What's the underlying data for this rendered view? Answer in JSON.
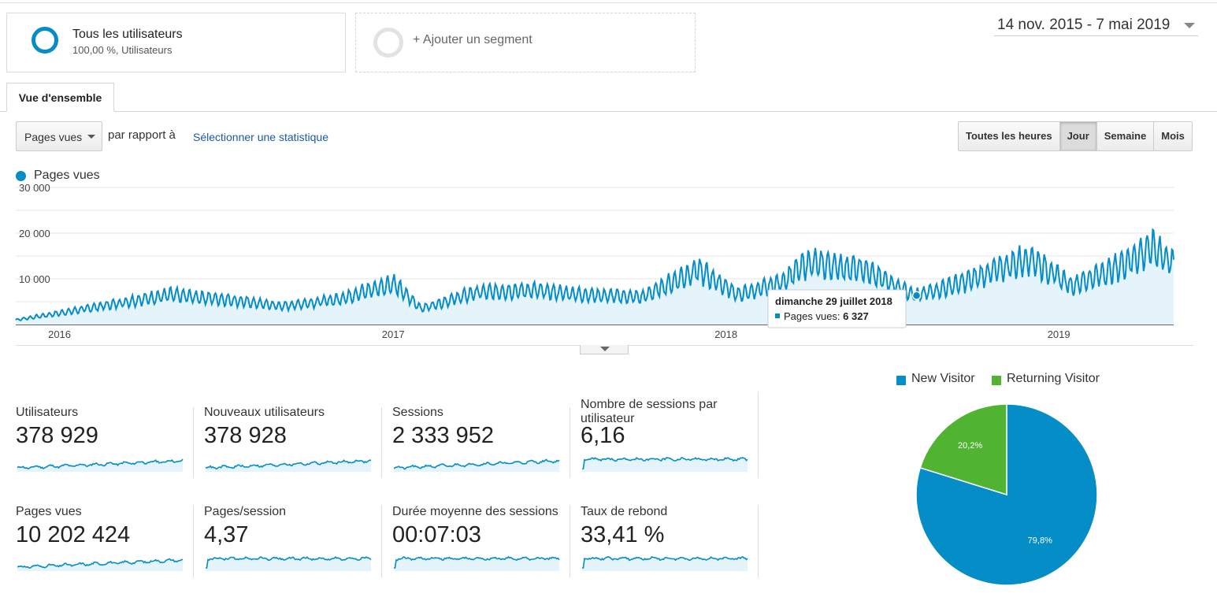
{
  "segments": {
    "primary": {
      "title": "Tous les utilisateurs",
      "subtitle": "100,00 %, Utilisateurs"
    },
    "add_label": "+ Ajouter un segment"
  },
  "date_range": "14 nov. 2015 - 7 mai 2019",
  "tabs": [
    {
      "label": "Vue d'ensemble"
    }
  ],
  "controls": {
    "metric_select": "Pages vues",
    "compare_label": "par rapport à",
    "select_stat_link": "Sélectionner une statistique",
    "granularity": [
      "Toutes les heures",
      "Jour",
      "Semaine",
      "Mois"
    ],
    "granularity_selected": "Jour"
  },
  "colors": {
    "accent": "#058dc7",
    "returning": "#50b432"
  },
  "chart_data": [
    {
      "type": "line",
      "legend": "Pages vues",
      "y_ticks": [
        "30 000",
        "20 000",
        "10 000"
      ],
      "x_ticks": [
        "2016",
        "2017",
        "2018",
        "2019"
      ],
      "ylim": [
        0,
        30000
      ],
      "xlim": [
        "2015-11-14",
        "2019-05-07"
      ],
      "series": [
        {
          "name": "Pages vues",
          "points": [
            [
              "2015-11-14",
              1000
            ],
            [
              "2016-01-01",
              2500
            ],
            [
              "2016-03-01",
              4500
            ],
            [
              "2016-05-01",
              6500
            ],
            [
              "2016-07-01",
              5500
            ],
            [
              "2016-09-01",
              4000
            ],
            [
              "2016-11-01",
              5500
            ],
            [
              "2017-01-01",
              9000
            ],
            [
              "2017-02-01",
              3500
            ],
            [
              "2017-04-01",
              7000
            ],
            [
              "2017-06-01",
              7500
            ],
            [
              "2017-08-01",
              6500
            ],
            [
              "2017-10-01",
              6000
            ],
            [
              "2017-12-01",
              12000
            ],
            [
              "2018-01-15",
              6500
            ],
            [
              "2018-03-01",
              9000
            ],
            [
              "2018-04-01",
              13500
            ],
            [
              "2018-06-01",
              12000
            ],
            [
              "2018-07-29",
              6327
            ],
            [
              "2018-09-15",
              9000
            ],
            [
              "2018-11-01",
              12500
            ],
            [
              "2018-12-01",
              14500
            ],
            [
              "2019-01-15",
              8500
            ],
            [
              "2019-03-01",
              12000
            ],
            [
              "2019-04-15",
              17000
            ],
            [
              "2019-05-07",
              13000
            ]
          ]
        }
      ],
      "tooltip": {
        "date": "dimanche 29 juillet 2018",
        "metric": "Pages vues:",
        "value": "6 327"
      }
    },
    {
      "type": "pie",
      "legend_position": "top",
      "categories": [
        "New Visitor",
        "Returning Visitor"
      ],
      "values": [
        79.8,
        20.2
      ],
      "labels": [
        "79,8%",
        "20,2%"
      ]
    }
  ],
  "kpis": [
    {
      "label": "Utilisateurs",
      "value": "378 929",
      "trend": "rising"
    },
    {
      "label": "Nouveaux utilisateurs",
      "value": "378 928",
      "trend": "rising"
    },
    {
      "label": "Sessions",
      "value": "2 333 952",
      "trend": "rising"
    },
    {
      "label": "Nombre de sessions par utilisateur",
      "value": "6,16",
      "trend": "flat"
    },
    {
      "label": "Pages vues",
      "value": "10 202 424",
      "trend": "rising"
    },
    {
      "label": "Pages/session",
      "value": "4,37",
      "trend": "flat"
    },
    {
      "label": "Durée moyenne des sessions",
      "value": "00:07:03",
      "trend": "flat"
    },
    {
      "label": "Taux de rebond",
      "value": "33,41 %",
      "trend": "flat"
    }
  ]
}
